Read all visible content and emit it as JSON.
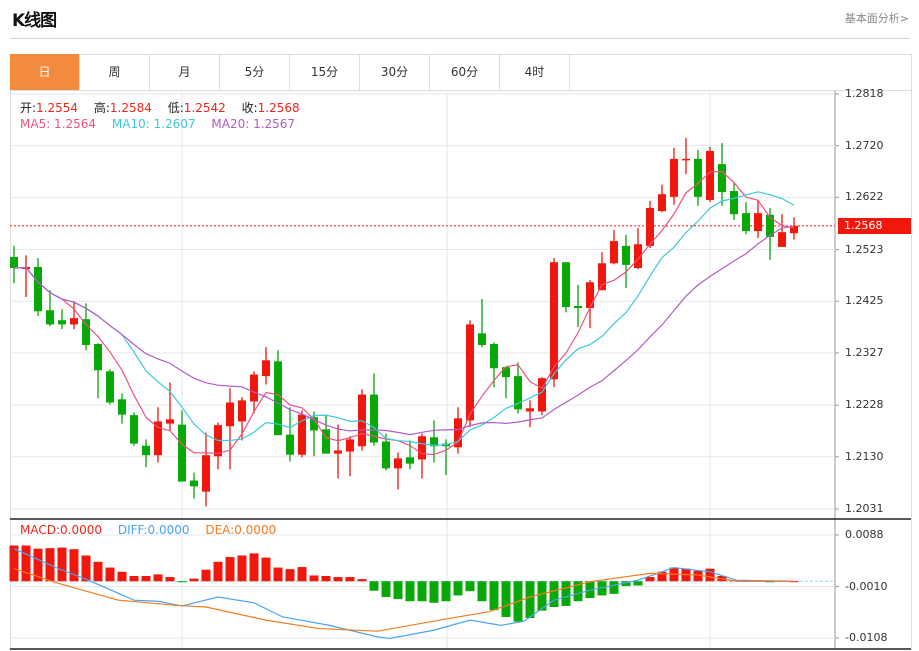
{
  "header": {
    "title": "K线图",
    "more_link": "基本面分析>"
  },
  "tabs": [
    {
      "label": "日",
      "active": true
    },
    {
      "label": "周"
    },
    {
      "label": "月"
    },
    {
      "label": "5分"
    },
    {
      "label": "15分"
    },
    {
      "label": "30分"
    },
    {
      "label": "60分"
    },
    {
      "label": "4时"
    }
  ],
  "ohlc_legend": {
    "open_label": "开:",
    "open": "1.2554",
    "high_label": "高:",
    "high": "1.2584",
    "low_label": "低:",
    "low": "1.2542",
    "close_label": "收:",
    "close": "1.2568"
  },
  "ma_legend": {
    "ma5": "MA5: 1.2564",
    "ma10": "MA10: 1.2607",
    "ma20": "MA20: 1.2567"
  },
  "macd_legend": {
    "macd": "MACD:0.0000",
    "diff": "DIFF:0.0000",
    "dea": "DEA:0.0000"
  },
  "colors": {
    "up": "#f0170c",
    "down": "#08a808",
    "ma5": "#f0517d",
    "ma10": "#3cc8dd",
    "ma20": "#b35bc9",
    "diff": "#4aa4f0",
    "dea": "#f47b20",
    "tab_active": "#f28b3c"
  },
  "current_price": "1.2568",
  "chart_data": [
    {
      "type": "candlestick",
      "title": "K线图",
      "y_ticks": [
        "1.2818",
        "1.2720",
        "1.2622",
        "1.2523",
        "1.2425",
        "1.2327",
        "1.2228",
        "1.2130",
        "1.2031"
      ],
      "ylim": [
        1.2031,
        1.2818
      ],
      "ohlc": [
        [
          1.2509,
          1.253,
          1.2459,
          1.2488
        ],
        [
          1.2486,
          1.2512,
          1.2433,
          1.249
        ],
        [
          1.249,
          1.2507,
          1.2397,
          1.2406
        ],
        [
          1.2408,
          1.2446,
          1.2378,
          1.2381
        ],
        [
          1.2389,
          1.241,
          1.2372,
          1.2381
        ],
        [
          1.2381,
          1.2425,
          1.2372,
          1.2393
        ],
        [
          1.2391,
          1.2421,
          1.2332,
          1.2342
        ],
        [
          1.2344,
          1.2345,
          1.2241,
          1.2294
        ],
        [
          1.2292,
          1.2296,
          1.2229,
          1.2233
        ],
        [
          1.2239,
          1.225,
          1.2193,
          1.221
        ],
        [
          1.2209,
          1.2214,
          1.2151,
          1.2155
        ],
        [
          1.2151,
          1.2163,
          1.211,
          1.2133
        ],
        [
          1.2133,
          1.2224,
          1.2119,
          1.2197
        ],
        [
          1.2193,
          1.2271,
          1.218,
          1.2201
        ],
        [
          1.2191,
          1.2218,
          1.2083,
          1.2083
        ],
        [
          1.2085,
          1.21,
          1.2051,
          1.2074
        ],
        [
          1.2064,
          1.2176,
          1.2036,
          1.2133
        ],
        [
          1.2131,
          1.2195,
          1.2106,
          1.219
        ],
        [
          1.2188,
          1.226,
          1.2106,
          1.2233
        ],
        [
          1.2197,
          1.2243,
          1.2161,
          1.2237
        ],
        [
          1.2235,
          1.2292,
          1.2212,
          1.2286
        ],
        [
          1.2283,
          1.2338,
          1.2267,
          1.2313
        ],
        [
          1.2311,
          1.2332,
          1.2171,
          1.2171
        ],
        [
          1.2172,
          1.2224,
          1.2121,
          1.2134
        ],
        [
          1.2134,
          1.2218,
          1.2129,
          1.221
        ],
        [
          1.2205,
          1.2216,
          1.2131,
          1.218
        ],
        [
          1.2182,
          1.2209,
          1.2136,
          1.2136
        ],
        [
          1.2136,
          1.2191,
          1.2089,
          1.2142
        ],
        [
          1.214,
          1.2169,
          1.2093,
          1.2163
        ],
        [
          1.215,
          1.2258,
          1.2142,
          1.2248
        ],
        [
          1.2248,
          1.2288,
          1.2151,
          1.2157
        ],
        [
          1.2159,
          1.2174,
          1.2104,
          1.2108
        ],
        [
          1.2108,
          1.2138,
          1.2068,
          1.2127
        ],
        [
          1.2129,
          1.2161,
          1.2106,
          1.2117
        ],
        [
          1.2125,
          1.2174,
          1.2089,
          1.2169
        ],
        [
          1.2167,
          1.2199,
          1.2119,
          1.215
        ],
        [
          1.2155,
          1.2163,
          1.2095,
          1.215
        ],
        [
          1.2148,
          1.2224,
          1.2136,
          1.2203
        ],
        [
          1.2199,
          1.2389,
          1.2186,
          1.2381
        ],
        [
          1.2364,
          1.2429,
          1.2338,
          1.2342
        ],
        [
          1.2344,
          1.2347,
          1.2262,
          1.2298
        ],
        [
          1.23,
          1.23,
          1.2241,
          1.2281
        ],
        [
          1.2283,
          1.2309,
          1.2212,
          1.222
        ],
        [
          1.2216,
          1.2237,
          1.2186,
          1.2222
        ],
        [
          1.2216,
          1.2281,
          1.2209,
          1.2279
        ],
        [
          1.2277,
          1.2507,
          1.2262,
          1.2499
        ],
        [
          1.2499,
          1.2499,
          1.2404,
          1.2414
        ],
        [
          1.2416,
          1.2456,
          1.2376,
          1.2412
        ],
        [
          1.2412,
          1.2465,
          1.2374,
          1.2461
        ],
        [
          1.2446,
          1.2518,
          1.2446,
          1.2497
        ],
        [
          1.2497,
          1.256,
          1.2495,
          1.2539
        ],
        [
          1.253,
          1.2551,
          1.245,
          1.2494
        ],
        [
          1.2488,
          1.2564,
          1.2486,
          1.2533
        ],
        [
          1.253,
          1.2615,
          1.2526,
          1.2602
        ],
        [
          1.2596,
          1.2646,
          1.2594,
          1.2628
        ],
        [
          1.2623,
          1.2716,
          1.2608,
          1.2695
        ],
        [
          1.2693,
          1.2735,
          1.2666,
          1.2695
        ],
        [
          1.2695,
          1.2712,
          1.2606,
          1.2623
        ],
        [
          1.2617,
          1.2718,
          1.2613,
          1.271
        ],
        [
          1.2685,
          1.2725,
          1.2606,
          1.2632
        ],
        [
          1.2634,
          1.2649,
          1.2579,
          1.259
        ],
        [
          1.2592,
          1.2613,
          1.2552,
          1.2558
        ],
        [
          1.2558,
          1.2615,
          1.2545,
          1.2592
        ],
        [
          1.2589,
          1.2602,
          1.2503,
          1.2547
        ],
        [
          1.2528,
          1.259,
          1.2528,
          1.2556
        ],
        [
          1.2554,
          1.2584,
          1.2542,
          1.2568
        ]
      ],
      "moving_averages": [
        5,
        10,
        20
      ]
    },
    {
      "type": "bar+line",
      "title": "MACD",
      "y_ticks": [
        "0.0088",
        "-0.0010",
        "-0.0108"
      ],
      "ylim": [
        -0.0108,
        0.0088
      ],
      "histogram": [
        0.0068,
        0.0068,
        0.0062,
        0.0063,
        0.0064,
        0.0061,
        0.0049,
        0.0037,
        0.0026,
        0.0018,
        0.001,
        0.001,
        0.0013,
        0.0008,
        -0.0002,
        0.0005,
        0.0022,
        0.0037,
        0.0046,
        0.0049,
        0.0053,
        0.0045,
        0.0026,
        0.0023,
        0.0027,
        0.0011,
        0.001,
        0.0008,
        0.0008,
        0.0004,
        -0.0018,
        -0.003,
        -0.0034,
        -0.0038,
        -0.0038,
        -0.0041,
        -0.0038,
        -0.0027,
        -0.0019,
        -0.0038,
        -0.0055,
        -0.0068,
        -0.0077,
        -0.007,
        -0.0056,
        -0.0049,
        -0.0047,
        -0.0038,
        -0.0032,
        -0.0027,
        -0.0024,
        -0.0009,
        -0.0008,
        0.0008,
        0.0018,
        0.0026,
        0.0024,
        0.002,
        0.0024,
        0.001,
        0.0002,
        0.0001,
        0.0001,
        -0.0002,
        0.0001,
        0.0
      ],
      "diff_points": [
        [
          0,
          0.0062
        ],
        [
          3.7,
          0.0024
        ],
        [
          6.2,
          0.0002
        ],
        [
          10,
          -0.0036
        ],
        [
          12,
          -0.0038
        ],
        [
          14,
          -0.0047
        ],
        [
          17,
          -0.003
        ],
        [
          20,
          -0.0041
        ],
        [
          22.4,
          -0.0068
        ],
        [
          26.3,
          -0.0084
        ],
        [
          30.3,
          -0.0106
        ],
        [
          31.3,
          -0.0109
        ],
        [
          35,
          -0.0093
        ],
        [
          38,
          -0.0074
        ],
        [
          40.6,
          -0.0084
        ],
        [
          42.5,
          -0.0076
        ],
        [
          45,
          -0.0036
        ],
        [
          48,
          -0.0017
        ],
        [
          52,
          0.0002
        ],
        [
          55,
          0.0026
        ],
        [
          58,
          0.0018
        ],
        [
          60.2,
          0.0002
        ],
        [
          65,
          0.0
        ]
      ],
      "dea_points": [
        [
          0,
          0.0024
        ],
        [
          3.7,
          -0.0004
        ],
        [
          8.7,
          -0.0036
        ],
        [
          13.6,
          -0.0046
        ],
        [
          16,
          -0.0049
        ],
        [
          21,
          -0.0074
        ],
        [
          25.4,
          -0.009
        ],
        [
          30.3,
          -0.0095
        ],
        [
          36.2,
          -0.0071
        ],
        [
          39.6,
          -0.0058
        ],
        [
          43,
          -0.003
        ],
        [
          48,
          -0.0001
        ],
        [
          53,
          0.0015
        ],
        [
          57,
          0.0012
        ],
        [
          60.2,
          0.0
        ],
        [
          65,
          0.0
        ]
      ]
    }
  ]
}
